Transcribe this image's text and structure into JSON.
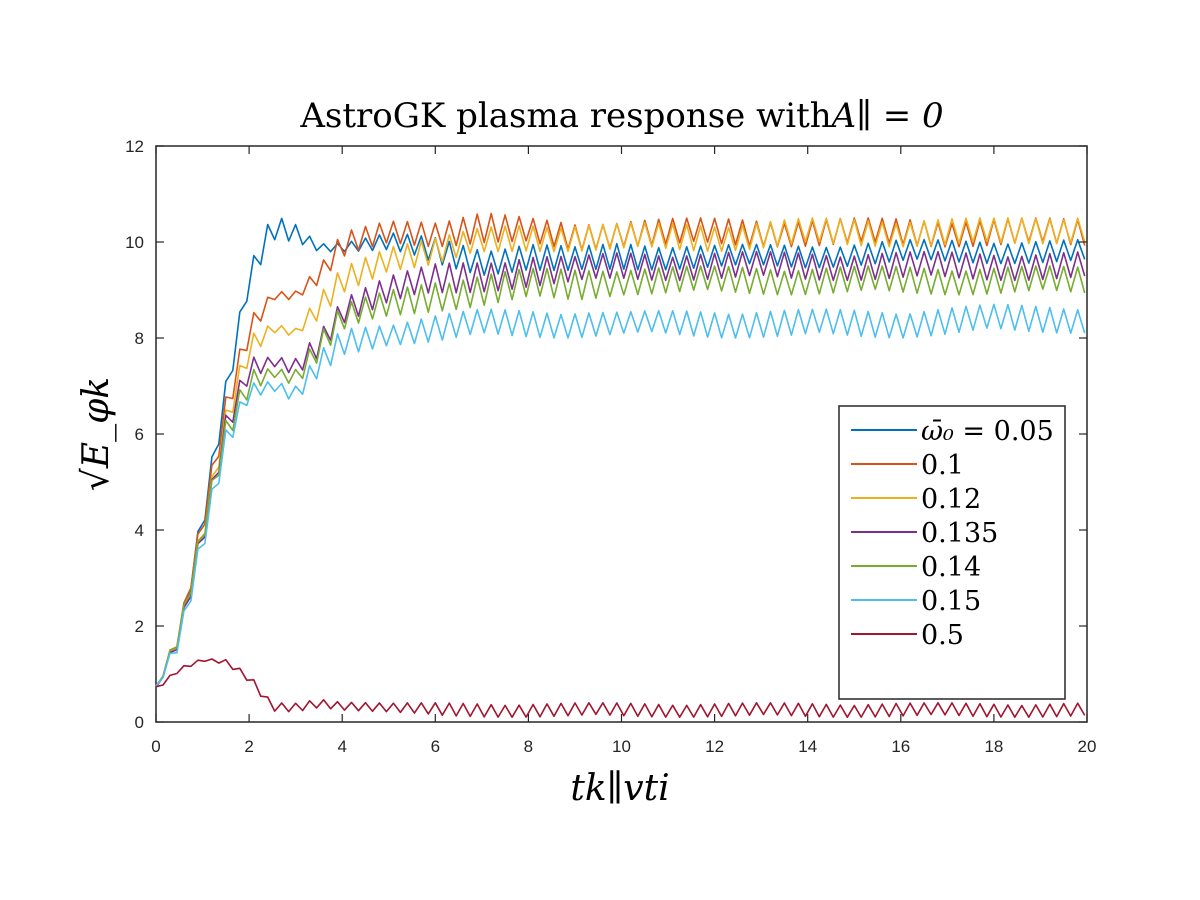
{
  "chart_data": {
    "type": "line",
    "title": "AstroGK plasma response with",
    "title_math": "A∥ = 0",
    "xlabel": "tk∥vti",
    "ylabel": "√E_φk",
    "xlim": [
      0,
      20
    ],
    "ylim": [
      0,
      12
    ],
    "x_ticks": [
      0,
      2,
      4,
      6,
      8,
      10,
      12,
      14,
      16,
      18,
      20
    ],
    "y_ticks": [
      0,
      2,
      4,
      6,
      8,
      10,
      12
    ],
    "grid": false,
    "legend_position": "lower-right",
    "legend_prefix": "ω̄₀ = ",
    "series": [
      {
        "name": "0.05",
        "color": "#0072bd",
        "x": [
          0.0,
          0.5,
          1.0,
          1.5,
          2.0,
          2.5,
          3.0,
          3.5,
          4.0,
          5.0,
          6.0,
          7.0,
          8.0,
          9.0,
          10.0,
          12.0,
          14.0,
          16.0,
          18.0,
          20.0
        ],
        "values": [
          0.7,
          1.8,
          4.2,
          6.8,
          9.2,
          10.3,
          10.2,
          9.9,
          9.9,
          10.0,
          9.8,
          9.6,
          9.7,
          9.6,
          9.7,
          9.7,
          9.7,
          9.8,
          9.8,
          9.8
        ],
        "osc": [
          0.05,
          0.2,
          0.3,
          0.3,
          0.3,
          0.3,
          0.2,
          0.1,
          0.1,
          0.2,
          0.3,
          0.3,
          0.3,
          0.3,
          0.3,
          0.25,
          0.25,
          0.25,
          0.25,
          0.25
        ]
      },
      {
        "name": "0.1",
        "color": "#d95319",
        "x": [
          0.0,
          0.5,
          1.0,
          1.5,
          2.0,
          2.5,
          3.0,
          3.5,
          4.0,
          5.0,
          6.0,
          7.0,
          8.0,
          9.0,
          10.0,
          12.0,
          14.0,
          16.0,
          18.0,
          20.0
        ],
        "values": [
          0.7,
          1.8,
          4.1,
          6.5,
          8.2,
          8.9,
          8.9,
          9.3,
          9.9,
          10.2,
          10.2,
          10.3,
          10.2,
          10.1,
          10.2,
          10.2,
          10.2,
          10.2,
          10.2,
          10.2
        ],
        "osc": [
          0.05,
          0.2,
          0.3,
          0.3,
          0.3,
          0.1,
          0.1,
          0.2,
          0.3,
          0.25,
          0.3,
          0.35,
          0.3,
          0.3,
          0.3,
          0.3,
          0.3,
          0.3,
          0.3,
          0.3
        ]
      },
      {
        "name": "0.12",
        "color": "#edb120",
        "x": [
          0.0,
          0.5,
          1.0,
          1.5,
          2.0,
          2.5,
          3.0,
          3.5,
          4.0,
          5.0,
          6.0,
          7.0,
          8.0,
          9.0,
          10.0,
          12.0,
          14.0,
          16.0,
          18.0,
          20.0
        ],
        "values": [
          0.7,
          1.8,
          4.0,
          6.3,
          7.8,
          8.2,
          8.1,
          8.6,
          9.2,
          9.7,
          9.8,
          10.0,
          10.1,
          10.1,
          10.1,
          10.1,
          10.2,
          10.2,
          10.2,
          10.3
        ],
        "osc": [
          0.05,
          0.2,
          0.3,
          0.3,
          0.3,
          0.1,
          0.1,
          0.3,
          0.3,
          0.3,
          0.3,
          0.3,
          0.3,
          0.3,
          0.3,
          0.3,
          0.3,
          0.3,
          0.3,
          0.3
        ]
      },
      {
        "name": "0.135",
        "color": "#7e2f8e",
        "x": [
          0.0,
          0.5,
          1.0,
          1.5,
          2.0,
          2.5,
          3.0,
          3.5,
          4.0,
          5.0,
          6.0,
          7.0,
          8.0,
          9.0,
          10.0,
          12.0,
          14.0,
          16.0,
          18.0,
          20.0
        ],
        "values": [
          0.7,
          1.8,
          3.9,
          6.1,
          7.3,
          7.5,
          7.4,
          7.9,
          8.6,
          9.0,
          9.2,
          9.3,
          9.4,
          9.4,
          9.5,
          9.5,
          9.5,
          9.5,
          9.5,
          9.5
        ],
        "osc": [
          0.05,
          0.2,
          0.3,
          0.3,
          0.3,
          0.1,
          0.2,
          0.3,
          0.3,
          0.3,
          0.35,
          0.35,
          0.35,
          0.3,
          0.3,
          0.3,
          0.3,
          0.3,
          0.3,
          0.3
        ]
      },
      {
        "name": "0.14",
        "color": "#77ac30",
        "x": [
          0.0,
          0.5,
          1.0,
          1.5,
          2.0,
          2.5,
          3.0,
          3.5,
          4.0,
          5.0,
          6.0,
          7.0,
          8.0,
          9.0,
          10.0,
          12.0,
          14.0,
          16.0,
          18.0,
          20.0
        ],
        "values": [
          0.7,
          1.8,
          3.9,
          6.0,
          7.1,
          7.3,
          7.2,
          7.8,
          8.4,
          8.7,
          8.9,
          9.0,
          9.1,
          9.1,
          9.2,
          9.2,
          9.2,
          9.2,
          9.2,
          9.2
        ],
        "osc": [
          0.05,
          0.2,
          0.3,
          0.3,
          0.3,
          0.1,
          0.2,
          0.3,
          0.3,
          0.3,
          0.35,
          0.35,
          0.35,
          0.35,
          0.3,
          0.3,
          0.3,
          0.3,
          0.3,
          0.3
        ]
      },
      {
        "name": "0.15",
        "color": "#4dbeee",
        "x": [
          0.0,
          0.5,
          1.0,
          1.5,
          2.0,
          2.5,
          3.0,
          3.5,
          4.0,
          5.0,
          6.0,
          7.0,
          8.0,
          9.0,
          10.0,
          12.0,
          14.0,
          16.0,
          18.0,
          20.0
        ],
        "values": [
          0.7,
          1.7,
          3.8,
          5.9,
          6.9,
          7.0,
          6.8,
          7.4,
          7.9,
          8.1,
          8.2,
          8.3,
          8.3,
          8.3,
          8.3,
          8.3,
          8.3,
          8.3,
          8.4,
          8.4
        ],
        "osc": [
          0.05,
          0.2,
          0.3,
          0.3,
          0.2,
          0.1,
          0.2,
          0.3,
          0.3,
          0.25,
          0.3,
          0.3,
          0.3,
          0.3,
          0.25,
          0.3,
          0.3,
          0.3,
          0.3,
          0.3
        ]
      },
      {
        "name": "0.5",
        "color": "#a2142f",
        "x": [
          0.0,
          0.5,
          1.0,
          1.5,
          2.0,
          2.5,
          3.0,
          3.5,
          4.0,
          5.0,
          6.0,
          7.0,
          8.0,
          9.0,
          10.0,
          12.0,
          14.0,
          16.0,
          18.0,
          20.0
        ],
        "values": [
          0.7,
          1.1,
          1.3,
          1.25,
          0.9,
          0.3,
          0.3,
          0.4,
          0.35,
          0.3,
          0.25,
          0.25,
          0.25,
          0.25,
          0.25,
          0.25,
          0.25,
          0.25,
          0.25,
          0.25
        ],
        "osc": [
          0.05,
          0.05,
          0.03,
          0.05,
          0.1,
          0.1,
          0.1,
          0.1,
          0.1,
          0.1,
          0.15,
          0.15,
          0.15,
          0.15,
          0.15,
          0.15,
          0.15,
          0.15,
          0.15,
          0.15
        ]
      }
    ]
  }
}
